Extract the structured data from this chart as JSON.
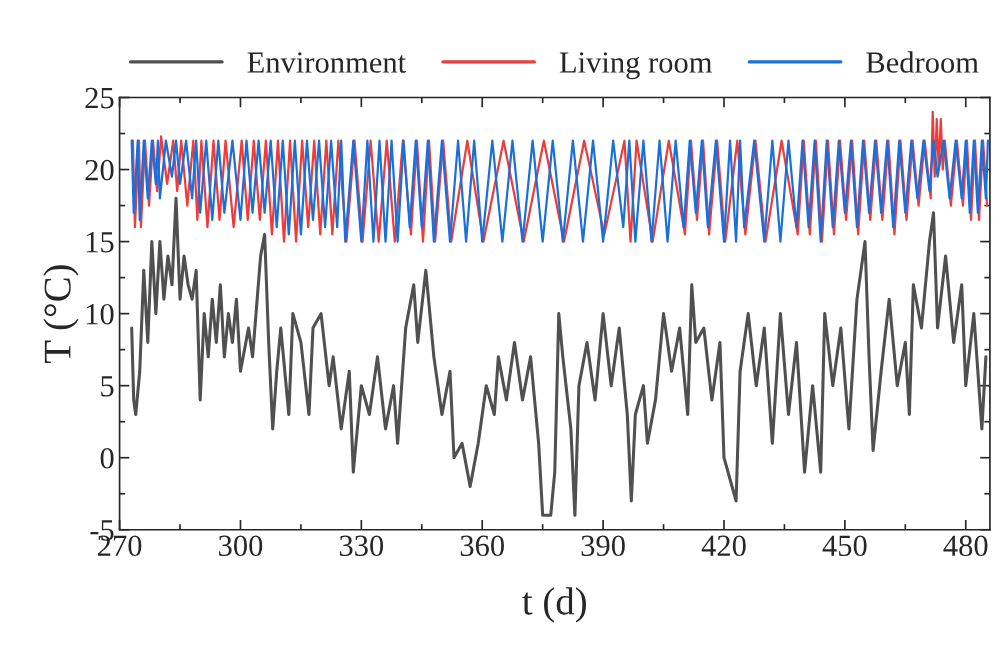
{
  "chart_data": {
    "type": "line",
    "xlabel": "t (d)",
    "ylabel": "T (°C)",
    "xlim": [
      270,
      486
    ],
    "ylim": [
      -5,
      25
    ],
    "xticks": [
      270,
      300,
      330,
      360,
      390,
      420,
      450,
      480
    ],
    "yticks": [
      -5,
      0,
      5,
      10,
      15,
      20,
      25
    ],
    "grid": false,
    "legend": "top",
    "marker": "none",
    "line_style": "solid",
    "series": [
      {
        "name": "Environment",
        "color": "#505050",
        "x": [
          273,
          273.5,
          274,
          275,
          276,
          277,
          278,
          279,
          280,
          281,
          282,
          283,
          284,
          285,
          286,
          287,
          288,
          289,
          290,
          291,
          292,
          293,
          294,
          295,
          296,
          297,
          298,
          299,
          300,
          302,
          303,
          305,
          306,
          307,
          308,
          309,
          310,
          312,
          313,
          315,
          317,
          318,
          320,
          322,
          323,
          325,
          327,
          328,
          330,
          332,
          334,
          336,
          338,
          339,
          341,
          343,
          344,
          346,
          348,
          350,
          352,
          353,
          355,
          357,
          359,
          361,
          363,
          364,
          366,
          368,
          370,
          372,
          374,
          375,
          377,
          378,
          379,
          380,
          382,
          383,
          384,
          386,
          388,
          390,
          392,
          394,
          396,
          397,
          398,
          400,
          401,
          403,
          405,
          407,
          409,
          411,
          412,
          413,
          415,
          417,
          419,
          420,
          422,
          423,
          424,
          426,
          428,
          430,
          432,
          434,
          436,
          438,
          440,
          442,
          444,
          445,
          447,
          449,
          451,
          453,
          455,
          456,
          457,
          459,
          461,
          463,
          465,
          466,
          467,
          469,
          471,
          472,
          473,
          475,
          477,
          479,
          480,
          482,
          484,
          485
        ],
        "values": [
          9,
          4,
          3,
          6,
          13,
          8,
          15,
          10,
          15,
          11,
          14,
          12,
          18,
          11,
          14,
          12,
          11,
          13,
          4,
          10,
          7,
          11,
          8,
          12,
          7,
          10,
          8,
          11,
          6,
          9,
          7,
          14,
          15.5,
          8,
          2,
          6,
          9,
          3,
          10,
          8,
          3,
          9,
          10,
          5,
          7,
          2,
          6,
          -1,
          5,
          3,
          7,
          2,
          5,
          1,
          9,
          12,
          8,
          13,
          7,
          3,
          6,
          0,
          1,
          -2,
          1,
          5,
          3,
          7,
          4,
          8,
          4,
          7,
          1,
          -4,
          -4,
          -1,
          10,
          7,
          2,
          -4,
          5,
          8,
          4,
          10,
          5,
          9,
          3,
          -3,
          3,
          5,
          1,
          4,
          10,
          6,
          9,
          3,
          12,
          8,
          9,
          4,
          8,
          0,
          -2,
          -3,
          6,
          10,
          5,
          9,
          1,
          10,
          3,
          8,
          -1,
          5,
          -1,
          10,
          5,
          9,
          2,
          11,
          15,
          7,
          0.5,
          6,
          11,
          5,
          8,
          3,
          12,
          9,
          15,
          17,
          9,
          14,
          8,
          12,
          5,
          10,
          2,
          7
        ]
      },
      {
        "name": "Living room",
        "color": "#ee3b3b",
        "x": [
          273.3,
          273.8,
          274.8,
          275.3,
          276.3,
          277.3,
          278.3,
          279.3,
          280.3,
          281.8,
          283.3,
          284.3,
          285.3,
          286.8,
          288.3,
          289.3,
          290.3,
          291.8,
          293.3,
          294.8,
          296.3,
          298.3,
          300.3,
          301.8,
          303.3,
          304.8,
          306.3,
          307.8,
          309.3,
          310.8,
          312.3,
          313.8,
          315.3,
          316.8,
          318.3,
          319.8,
          321.3,
          322.8,
          324.3,
          326.3,
          328.3,
          330.3,
          332.3,
          334.3,
          336.3,
          338.3,
          340.3,
          342.3,
          343.8,
          345.3,
          346.8,
          348.3,
          350.3,
          352.3,
          356.3,
          360.3,
          365.3,
          370.3,
          375.3,
          380.3,
          385.3,
          390.3,
          395.3,
          396.8,
          398.3,
          402.3,
          406.3,
          410.3,
          411.8,
          413.3,
          414.8,
          416.3,
          418.3,
          420.3,
          423.3,
          425.3,
          427.8,
          430.3,
          434.3,
          438.3,
          439.8,
          441.3,
          442.8,
          444.3,
          445.8,
          447.3,
          448.8,
          450.3,
          451.8,
          453.3,
          454.8,
          456.3,
          457.8,
          459.3,
          460.8,
          462.3,
          463.8,
          465.3,
          466.8,
          468.3,
          469.8,
          471.3,
          471.8,
          472.3,
          472.8,
          473.3,
          473.8,
          474.3,
          474.8,
          476.3,
          477.8,
          479.3,
          480.3,
          481.3,
          482.3,
          483.3,
          484.3,
          485.3
        ],
        "values": [
          22,
          16,
          22,
          16,
          22,
          17.5,
          22,
          18.5,
          22.3,
          19,
          22,
          18.5,
          22,
          17.5,
          22,
          16.5,
          22,
          16,
          22,
          16.5,
          22,
          16,
          22,
          16.5,
          22,
          16.5,
          22,
          15.5,
          22,
          15,
          22,
          15,
          22,
          16,
          22,
          15.5,
          22,
          15.5,
          22,
          15,
          22,
          15,
          22,
          15,
          22,
          15,
          22,
          15.5,
          22,
          15,
          22,
          15,
          22,
          15,
          22,
          15,
          22,
          15,
          22,
          15,
          22,
          15.5,
          22,
          15,
          22,
          15,
          22,
          15.5,
          22,
          16.5,
          22,
          15.5,
          22,
          15,
          22,
          15.5,
          22,
          15,
          22,
          15.5,
          22,
          15.5,
          22,
          15,
          22,
          15.5,
          22,
          16.5,
          22,
          15.5,
          22,
          16.5,
          22,
          16.5,
          22,
          15.5,
          22,
          16.5,
          22,
          17.5,
          22,
          18,
          24,
          19.5,
          23.5,
          20,
          23.5,
          20,
          22,
          17.5,
          22,
          17.5,
          22,
          16.5,
          22,
          16.5,
          22,
          17.5
        ]
      },
      {
        "name": "Bedroom",
        "color": "#1a6fdb",
        "x": [
          273,
          273.5,
          274.5,
          275,
          276,
          277,
          278,
          279,
          279.5,
          280,
          281.5,
          283,
          284,
          285,
          286.5,
          288,
          289,
          290,
          291.5,
          293,
          294.5,
          296,
          298,
          300,
          301.5,
          303,
          304.5,
          306,
          307.5,
          309,
          310.5,
          312,
          313.5,
          315,
          316.5,
          318,
          319.5,
          321,
          322.5,
          324,
          325,
          326,
          328,
          330,
          331.5,
          333,
          334.5,
          336,
          337.5,
          339,
          340.5,
          342,
          343.5,
          345,
          346.5,
          348,
          350,
          352,
          354,
          356,
          358,
          360,
          362.5,
          365,
          367.5,
          370,
          372.5,
          375,
          377.5,
          380,
          382.5,
          385,
          387.5,
          390,
          392.5,
          395,
          396.5,
          398,
          400,
          402,
          404,
          406,
          408,
          410,
          411.5,
          413,
          414.5,
          416,
          418,
          420,
          421.5,
          423,
          424,
          425,
          427.5,
          430,
          432,
          434,
          436,
          438,
          439.5,
          441,
          442.5,
          444,
          445.5,
          447,
          448.5,
          450,
          451.5,
          453,
          454.5,
          456,
          457.5,
          459,
          460.5,
          462,
          463.5,
          465,
          466.5,
          468,
          469.5,
          471,
          472,
          473,
          474.5,
          476,
          477.5,
          479,
          480,
          481,
          482,
          483,
          484,
          485,
          485.5
        ],
        "values": [
          22,
          17,
          22,
          16.5,
          22,
          18,
          22,
          19,
          22,
          18,
          22,
          19.5,
          22,
          19,
          22,
          18,
          22,
          17,
          22,
          16.5,
          22,
          17,
          22,
          16.5,
          22,
          17,
          22,
          17,
          22,
          16,
          22,
          15.5,
          22,
          15.5,
          22,
          16.5,
          22,
          16,
          22,
          16,
          22,
          15,
          22,
          15,
          22,
          15,
          22,
          15,
          22,
          15,
          22,
          16,
          22,
          16,
          22,
          15,
          22,
          15,
          22,
          15,
          22,
          15,
          22,
          15,
          22,
          15,
          22,
          15,
          22,
          15,
          22,
          15,
          22,
          15,
          22,
          16,
          22,
          15,
          22,
          15,
          22,
          15,
          22,
          16,
          22,
          17,
          22,
          16,
          22,
          15,
          22,
          15,
          22,
          16,
          22,
          15,
          22,
          15,
          22,
          16,
          22,
          16,
          22,
          15,
          22,
          16,
          22,
          17,
          22,
          16,
          22,
          17,
          22,
          17,
          22,
          16,
          22,
          17,
          22,
          18,
          22,
          18.5,
          22,
          19.5,
          22,
          18,
          22,
          18,
          22,
          17,
          22,
          17,
          22,
          18,
          22
        ]
      }
    ]
  }
}
